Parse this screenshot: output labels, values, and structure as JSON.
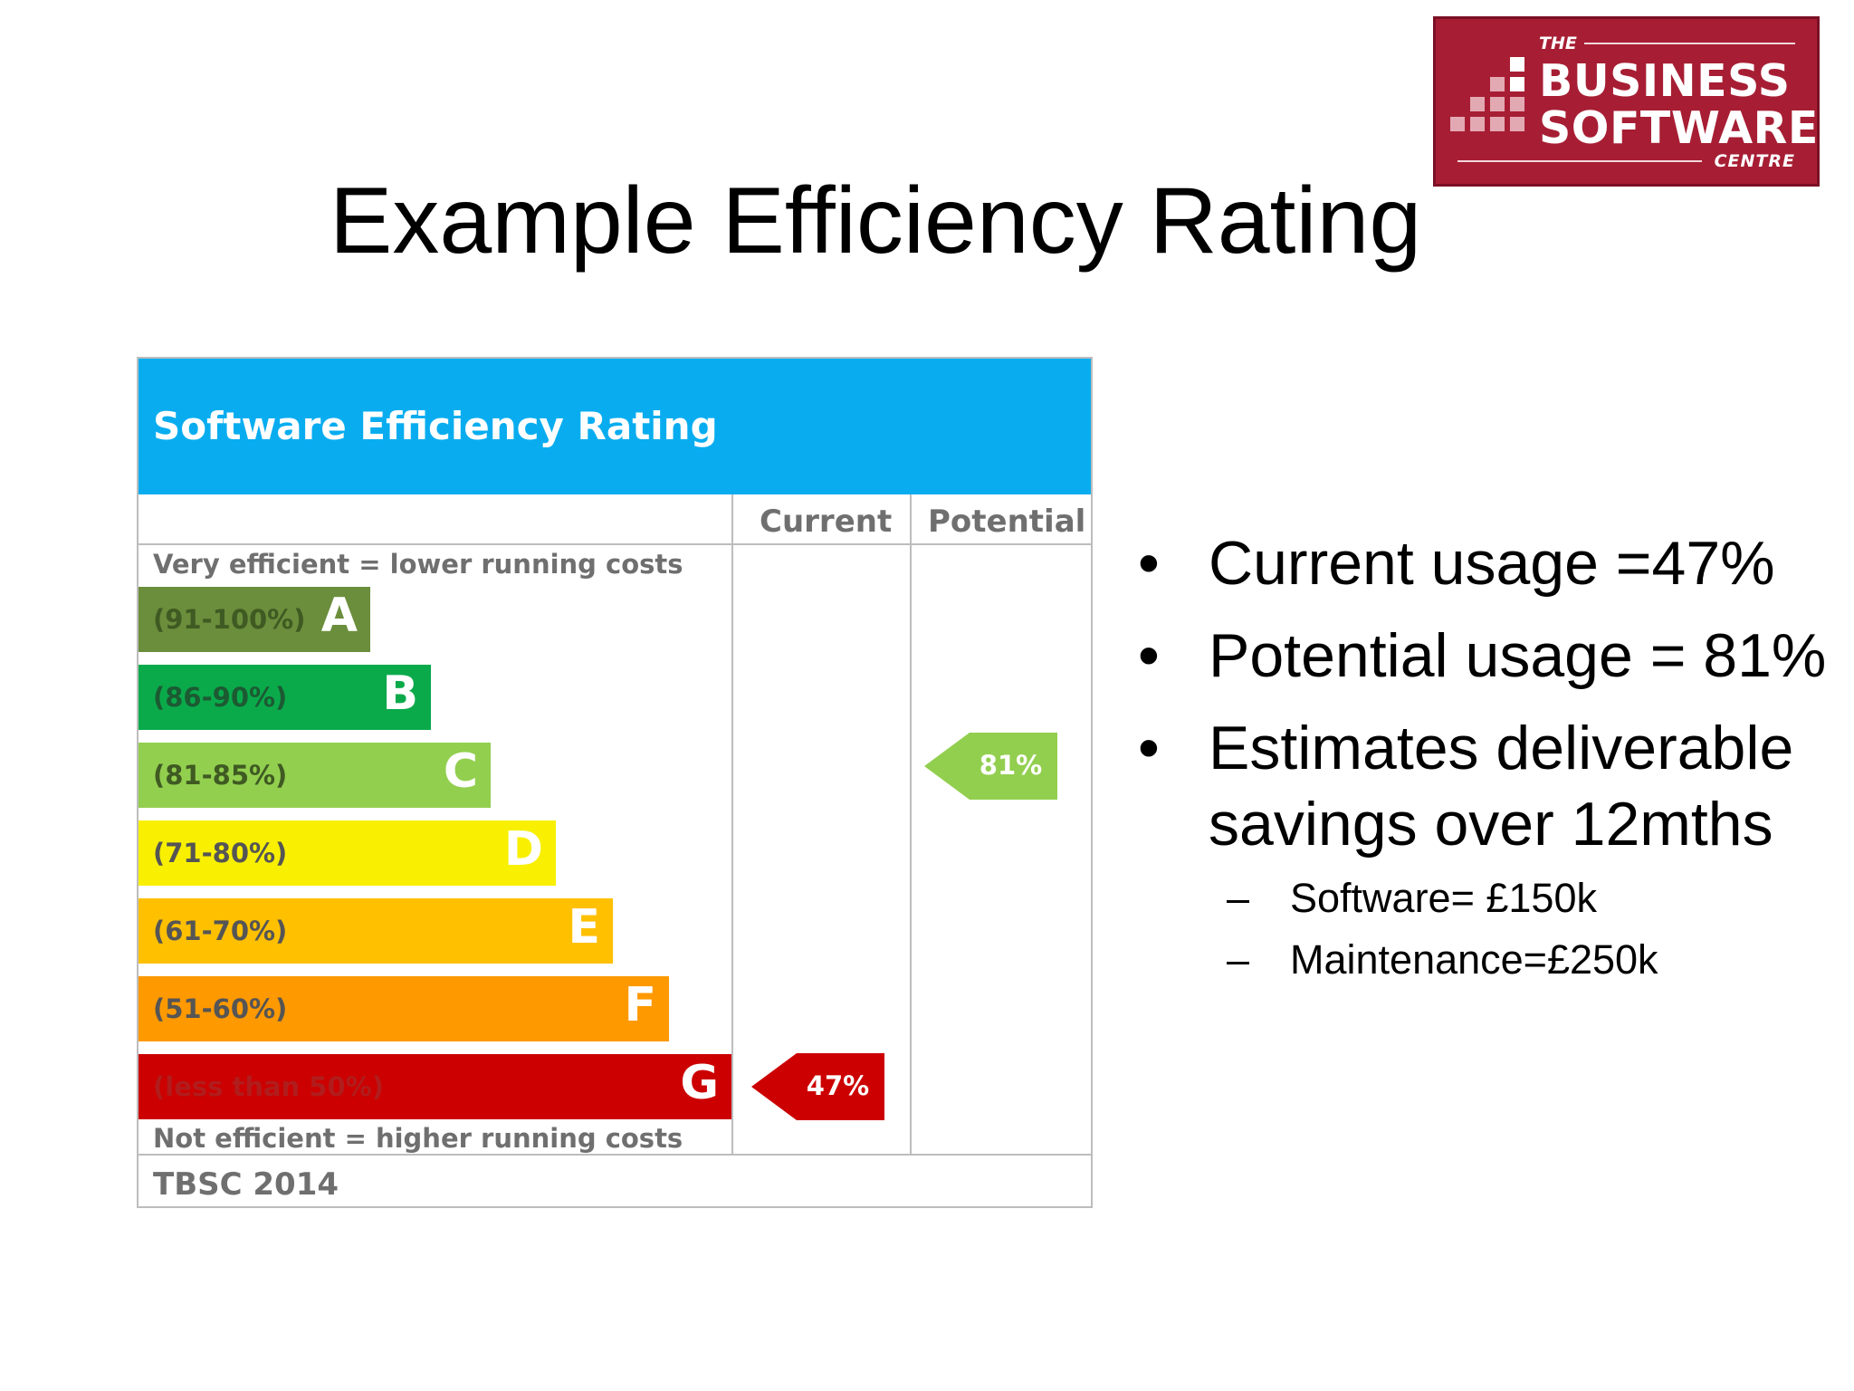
{
  "logo": {
    "the": "THE",
    "line1": "BUSINESS",
    "line2": "SOFTWARE",
    "line3": "CENTRE",
    "color": "#a71e34"
  },
  "slide": {
    "title": "Example Efficiency Rating"
  },
  "rating_chart": {
    "header": "Software Efficiency Rating",
    "columns": {
      "current": "Current",
      "potential": "Potential"
    },
    "top_note": "Very efficient = lower running costs",
    "bottom_note": "Not efficient = higher running costs",
    "footer": "TBSC 2014",
    "bands": [
      {
        "range": "(91-100%)",
        "letter": "A",
        "color": "#6b8e3c",
        "text_color": "#3f5a22"
      },
      {
        "range": "(86-90%)",
        "letter": "B",
        "color": "#0aaa4b",
        "text_color": "#1c5a32"
      },
      {
        "range": "(81-85%)",
        "letter": "C",
        "color": "#92cf4f",
        "text_color": "#3f5a22"
      },
      {
        "range": "(71-80%)",
        "letter": "D",
        "color": "#f8f000",
        "text_color": "#555555"
      },
      {
        "range": "(61-70%)",
        "letter": "E",
        "color": "#ffc000",
        "text_color": "#555555"
      },
      {
        "range": "(51-60%)",
        "letter": "F",
        "color": "#ff9900",
        "text_color": "#555555"
      },
      {
        "range": "(less than 50%)",
        "letter": "G",
        "color": "#cc0000",
        "text_color": "#b11c1c"
      }
    ],
    "current": {
      "value": "47%",
      "band": "G",
      "color": "#cc0000"
    },
    "potential": {
      "value": "81%",
      "band": "C",
      "color": "#92cf4f"
    }
  },
  "bullets": [
    {
      "text": "Current usage =47%"
    },
    {
      "text": "Potential usage = 81%"
    },
    {
      "text": "Estimates deliverable savings over 12mths"
    }
  ],
  "sub_bullets": [
    {
      "text": "Software= £150k"
    },
    {
      "text": "Maintenance=£250k"
    }
  ]
}
